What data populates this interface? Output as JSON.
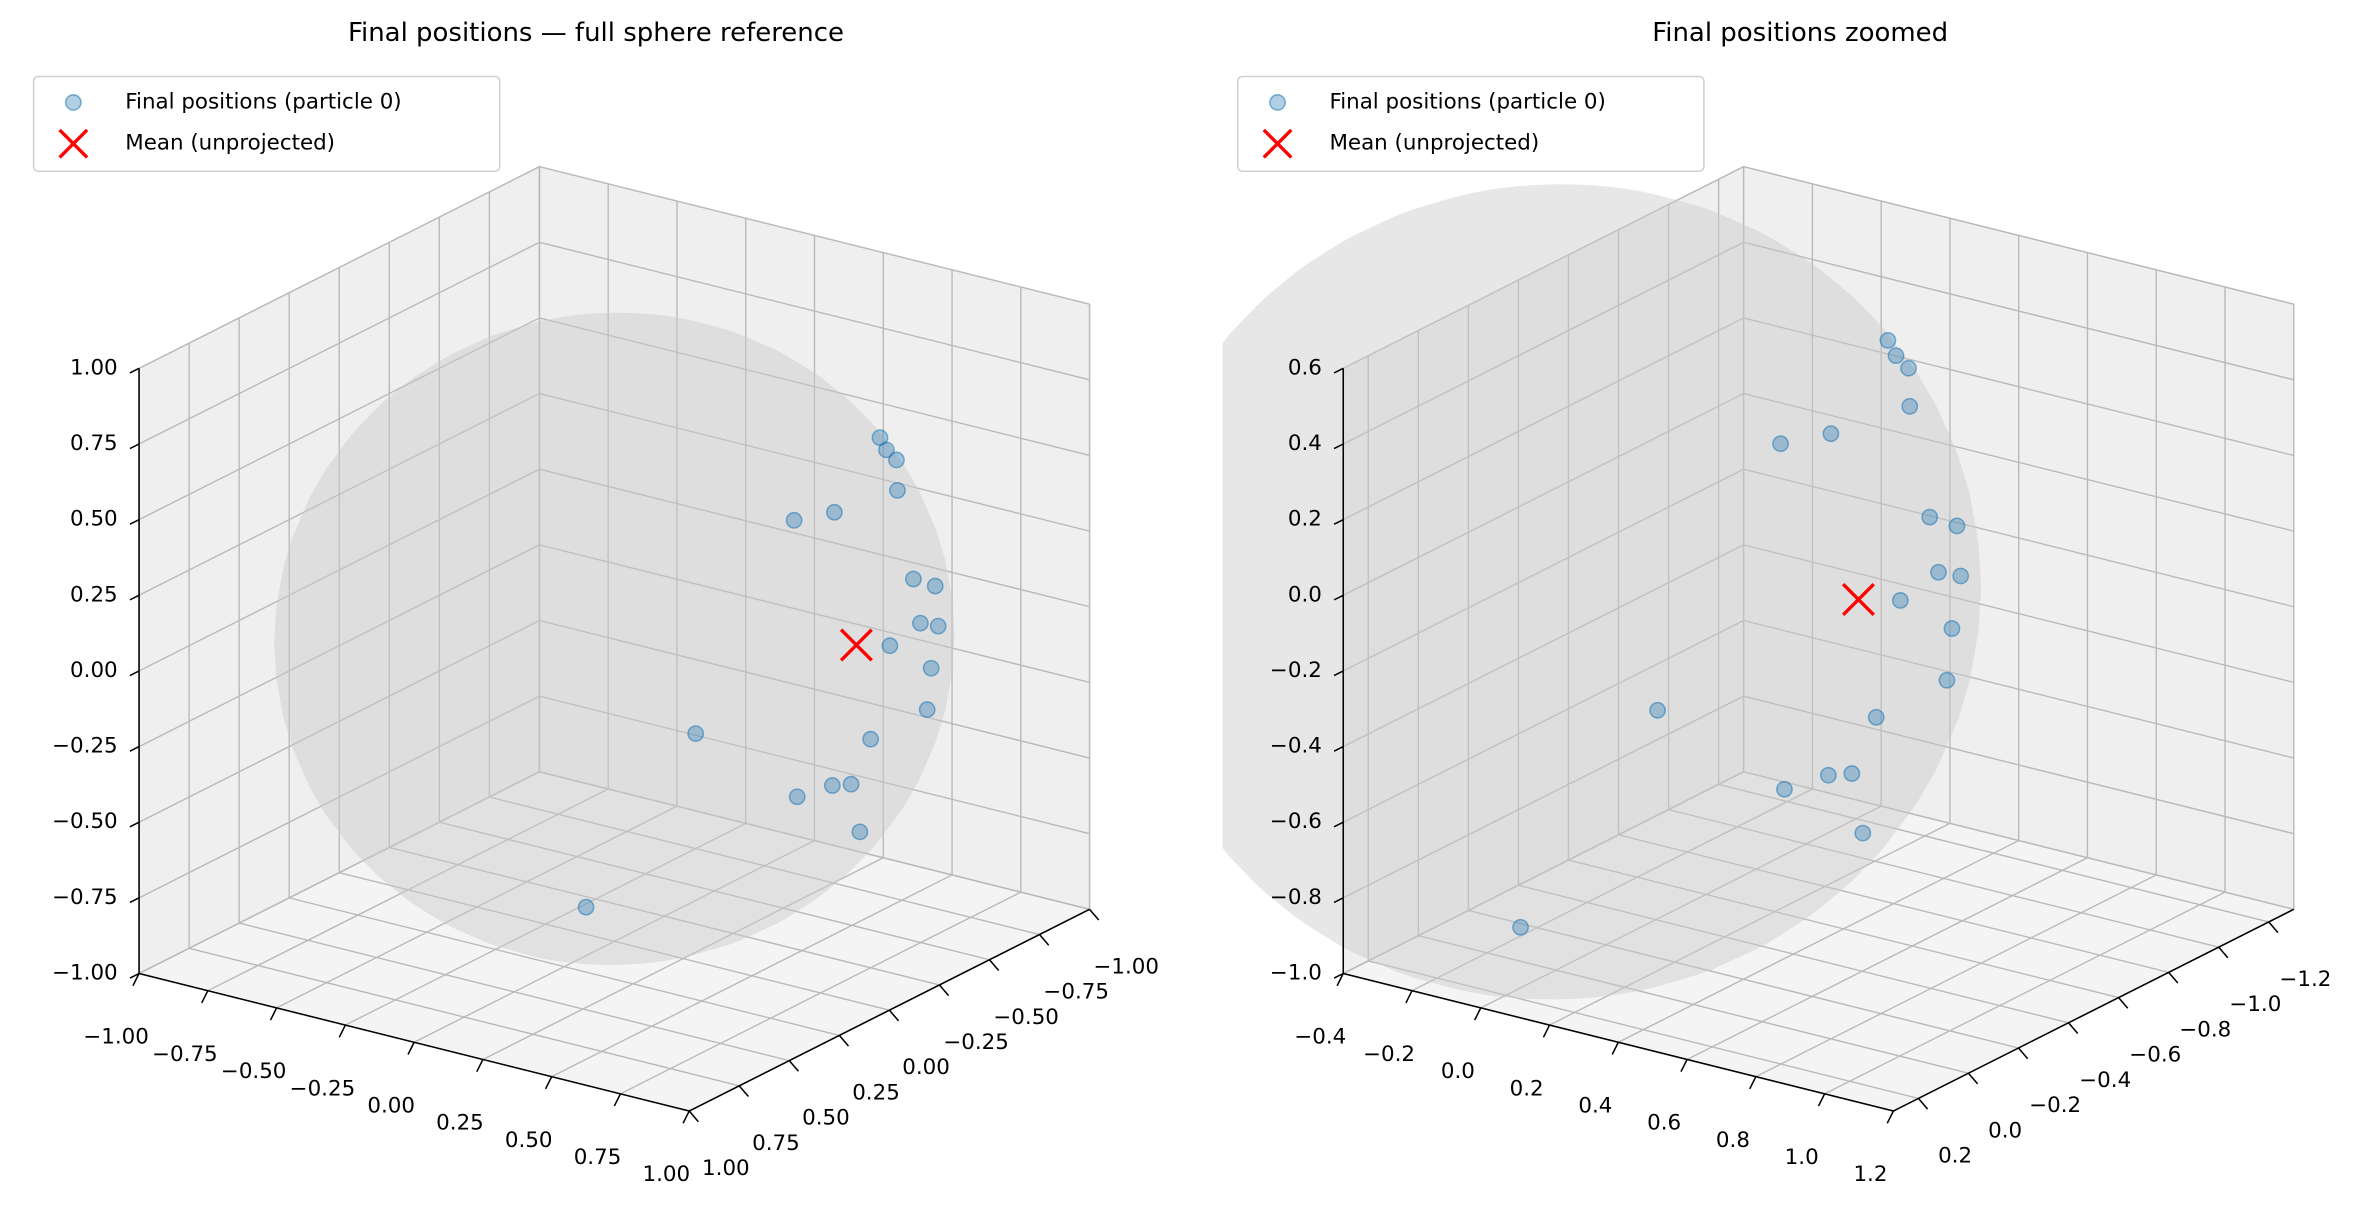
{
  "chart_data": [
    {
      "type": "scatter3d",
      "title": "Final positions — full sphere reference",
      "legend": "upper left",
      "grid": true,
      "xlim": [
        -1,
        1
      ],
      "ylim": [
        -1,
        1
      ],
      "zlim": [
        -1,
        1
      ],
      "xticks": [
        {
          "value": -1,
          "label": "−1.00"
        },
        {
          "value": -0.75,
          "label": "−0.75"
        },
        {
          "value": -0.5,
          "label": "−0.50"
        },
        {
          "value": -0.25,
          "label": "−0.25"
        },
        {
          "value": 0,
          "label": "0.00"
        },
        0.25,
        {
          "value": 0.5,
          "label": "0.50"
        },
        0.75,
        {
          "value": 1,
          "label": "1.00"
        }
      ],
      "yticks": [
        {
          "value": -1,
          "label": "−1.00"
        },
        {
          "value": -0.75,
          "label": "−0.75"
        },
        {
          "value": -0.5,
          "label": "−0.50"
        },
        {
          "value": -0.25,
          "label": "−0.25"
        },
        {
          "value": 0,
          "label": "0.00"
        },
        0.25,
        {
          "value": 0.5,
          "label": "0.50"
        },
        0.75,
        {
          "value": 1,
          "label": "1.00"
        }
      ],
      "zticks": [
        {
          "value": -1,
          "label": "−1.00"
        },
        {
          "value": -0.75,
          "label": "−0.75"
        },
        {
          "value": -0.5,
          "label": "−0.50"
        },
        {
          "value": -0.25,
          "label": "−0.25"
        },
        {
          "value": 0,
          "label": "0.00"
        },
        0.25,
        {
          "value": 0.5,
          "label": "0.50"
        },
        0.75,
        {
          "value": 1,
          "label": "1.00"
        }
      ],
      "series": [
        {
          "name": "Final positions (particle 0)",
          "color": "#1f77b4",
          "marker": "o",
          "x": [
            0.58,
            0.64,
            0.64,
            0.76,
            0.77,
            0.8,
            0.92,
            0.89,
            0.96,
            0.93,
            0.98,
            0.97,
            0.97,
            0.99,
            -0.25,
            0.97,
            0.96,
            0.17,
            0.9,
            -0.19
          ],
          "y": [
            -0.53,
            -0.48,
            -0.53,
            -0.37,
            0.16,
            0.0,
            -0.23,
            -0.38,
            -0.21,
            -0.34,
            -0.03,
            -0.25,
            -0.23,
            0.08,
            -0.75,
            0.15,
            0.23,
            -0.68,
            0.01,
            -0.12
          ],
          "z": [
            0.62,
            0.61,
            0.56,
            0.54,
            0.62,
            0.6,
            0.33,
            0.25,
            0.2,
            0.14,
            0.19,
            0.04,
            -0.09,
            -0.08,
            -0.62,
            -0.21,
            -0.19,
            -0.71,
            -0.43,
            -0.97
          ]
        },
        {
          "name": "Mean (unprojected)",
          "color": "#ff0000",
          "marker": "x",
          "x": [
            0.72
          ],
          "y": [
            -0.22
          ],
          "z": [
            0.07
          ]
        }
      ]
    },
    {
      "type": "scatter3d",
      "title": "Final positions zoomed",
      "legend": "upper left",
      "grid": true,
      "xlim": [
        -0.4,
        1.2
      ],
      "ylim": [
        -1.3,
        0.3
      ],
      "zlim": [
        -1.0,
        0.6
      ],
      "xticks": [
        {
          "value": -0.4,
          "label": "−0.4"
        },
        {
          "value": -0.2,
          "label": "−0.2"
        },
        {
          "value": 0,
          "label": "0.0"
        },
        0.2,
        0.4,
        0.6,
        0.8,
        {
          "value": 1,
          "label": "1.0"
        },
        1.2
      ],
      "yticks": [
        {
          "value": -1.2,
          "label": "−1.2"
        },
        {
          "value": -1,
          "label": "−1.0"
        },
        {
          "value": -0.8,
          "label": "−0.8"
        },
        {
          "value": -0.6,
          "label": "−0.6"
        },
        {
          "value": -0.4,
          "label": "−0.4"
        },
        {
          "value": -0.2,
          "label": "−0.2"
        },
        {
          "value": 0,
          "label": "0.0"
        },
        0.2
      ],
      "zticks": [
        {
          "value": -1,
          "label": "−1.0"
        },
        {
          "value": -0.8,
          "label": "−0.8"
        },
        {
          "value": -0.6,
          "label": "−0.6"
        },
        {
          "value": -0.4,
          "label": "−0.4"
        },
        {
          "value": -0.2,
          "label": "−0.2"
        },
        {
          "value": 0,
          "label": "0.0"
        },
        0.2,
        0.4,
        0.6
      ],
      "series": [
        {
          "name": "Final positions (particle 0)",
          "color": "#1f77b4",
          "marker": "o",
          "x": [
            0.58,
            0.64,
            0.64,
            0.76,
            0.77,
            0.8,
            0.92,
            0.89,
            0.96,
            0.93,
            0.98,
            0.97,
            0.97,
            0.99,
            -0.25,
            0.97,
            0.96,
            0.17,
            0.9,
            -0.19
          ],
          "y": [
            -0.53,
            -0.48,
            -0.53,
            -0.37,
            0.16,
            0.0,
            -0.23,
            -0.38,
            -0.21,
            -0.34,
            -0.03,
            -0.25,
            -0.23,
            0.08,
            -0.75,
            0.15,
            0.23,
            -0.68,
            0.01,
            -0.12
          ],
          "z": [
            0.62,
            0.61,
            0.56,
            0.54,
            0.62,
            0.6,
            0.33,
            0.25,
            0.2,
            0.14,
            0.19,
            0.04,
            -0.09,
            -0.08,
            -0.62,
            -0.21,
            -0.19,
            -0.71,
            -0.43,
            -0.97
          ]
        },
        {
          "name": "Mean (unprojected)",
          "color": "#ff0000",
          "marker": "x",
          "x": [
            0.72
          ],
          "y": [
            -0.22
          ],
          "z": [
            0.07
          ]
        }
      ]
    }
  ]
}
